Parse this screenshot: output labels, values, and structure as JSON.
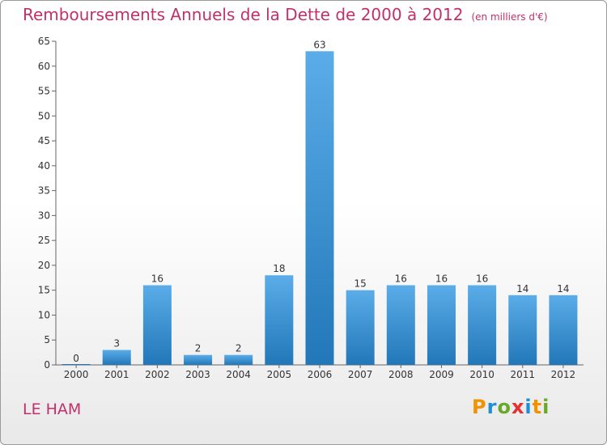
{
  "title": "Remboursements Annuels de la Dette de 2000 à 2012",
  "subtitle": "(en milliers d'€)",
  "place": "LE HAM",
  "logo": {
    "text": "Proxiti",
    "letters": [
      "P",
      "r",
      "o",
      "x",
      "i",
      "t",
      "i"
    ],
    "letter_colors": [
      "#f39200",
      "#1d8fd6",
      "#6aa829",
      "#e53030",
      "#1d8fd6",
      "#f39200",
      "#6aa829"
    ]
  },
  "chart_data": {
    "type": "bar",
    "categories": [
      "2000",
      "2001",
      "2002",
      "2003",
      "2004",
      "2005",
      "2006",
      "2007",
      "2008",
      "2009",
      "2010",
      "2011",
      "2012"
    ],
    "values": [
      0,
      3,
      16,
      2,
      2,
      18,
      63,
      15,
      16,
      16,
      16,
      14,
      14
    ],
    "ylim": [
      0,
      65
    ],
    "yticks": [
      0,
      5,
      10,
      15,
      20,
      25,
      30,
      35,
      40,
      45,
      50,
      55,
      60,
      65
    ],
    "grid": false,
    "bar_color_top": "#5aade8",
    "bar_color_bottom": "#2277b8",
    "title": "Remboursements Annuels de la Dette de 2000 à 2012",
    "xlabel": "",
    "ylabel": ""
  }
}
